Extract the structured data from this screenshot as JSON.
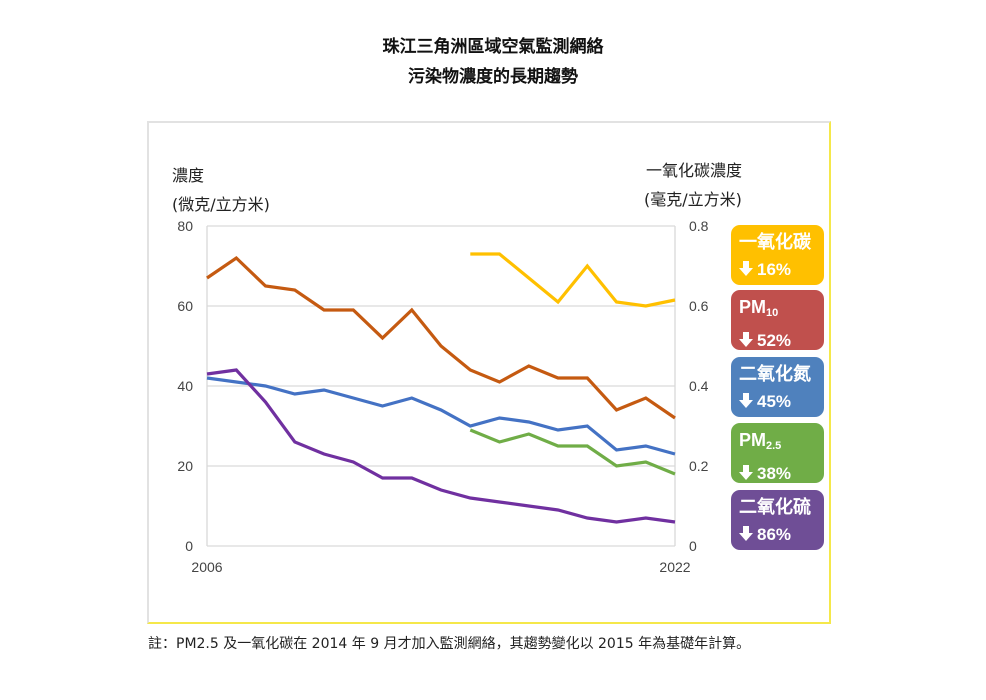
{
  "title_line1": "珠江三角洲區域空氣監測網絡",
  "title_line2": "污染物濃度的長期趨勢",
  "left_axis": {
    "label_line1": "濃度",
    "label_line2": "(微克/立方米)"
  },
  "right_axis": {
    "label_line1": "一氧化碳濃度",
    "label_line2": "(毫克/立方米)"
  },
  "badges": [
    {
      "name": "一氧化碳",
      "sub": "",
      "change": "16%",
      "arrow_icon": "down-arrow",
      "color": "#FFC000"
    },
    {
      "name": "PM",
      "sub": "10",
      "change": "52%",
      "arrow_icon": "down-arrow",
      "color": "#C0504D"
    },
    {
      "name": "二氧化氮",
      "sub": "",
      "change": "45%",
      "arrow_icon": "down-arrow",
      "color": "#4F81BD"
    },
    {
      "name": "PM",
      "sub": "2.5",
      "change": "38%",
      "arrow_icon": "down-arrow",
      "color": "#70AD47"
    },
    {
      "name": "二氧化硫",
      "sub": "",
      "change": "86%",
      "arrow_icon": "down-arrow",
      "color": "#6F4E96"
    }
  ],
  "note": "註：PM2.5 及一氧化碳在 2014 年 9 月才加入監測網絡，其趨勢變化以 2015 年為基礎年計算。",
  "chart_data": {
    "type": "line",
    "title": "珠江三角洲區域空氣監測網絡 污染物濃度的長期趨勢",
    "xlabel": "",
    "ylabel": "濃度 (微克/立方米)",
    "y2label": "一氧化碳濃度 (毫克/立方米)",
    "x": [
      2006,
      2007,
      2008,
      2009,
      2010,
      2011,
      2012,
      2013,
      2014,
      2015,
      2016,
      2017,
      2018,
      2019,
      2020,
      2021,
      2022
    ],
    "x_tick_labels": [
      "2006",
      "2022"
    ],
    "ylim": [
      0,
      80
    ],
    "yticks": [
      0,
      20,
      40,
      60,
      80
    ],
    "y2lim": [
      0,
      0.8
    ],
    "y2ticks": [
      "0",
      "0.2",
      "0.4",
      "0.6",
      "0.8"
    ],
    "grid": true,
    "series": [
      {
        "name": "PM10",
        "axis": "left",
        "color": "#C55A11",
        "values": [
          67,
          72,
          65,
          64,
          59,
          59,
          52,
          59,
          50,
          44,
          41,
          45,
          42,
          42,
          34,
          37,
          32
        ]
      },
      {
        "name": "二氧化氮",
        "axis": "left",
        "color": "#4472C4",
        "values": [
          42,
          41,
          40,
          38,
          39,
          37,
          35,
          37,
          34,
          30,
          32,
          31,
          29,
          30,
          24,
          25,
          23
        ]
      },
      {
        "name": "二氧化硫",
        "axis": "left",
        "color": "#7030A0",
        "values": [
          43,
          44,
          36,
          26,
          23,
          21,
          17,
          17,
          14,
          12,
          11,
          10,
          9,
          7,
          6,
          7,
          6
        ]
      },
      {
        "name": "PM2.5",
        "axis": "left",
        "color": "#70AD47",
        "values": [
          null,
          null,
          null,
          null,
          null,
          null,
          null,
          null,
          null,
          29,
          26,
          28,
          25,
          25,
          20,
          21,
          18
        ]
      },
      {
        "name": "一氧化碳",
        "axis": "right",
        "color": "#FFC000",
        "values": [
          null,
          null,
          null,
          null,
          null,
          null,
          null,
          null,
          null,
          0.73,
          0.73,
          0.67,
          0.61,
          0.7,
          0.61,
          0.6,
          0.615
        ]
      }
    ]
  }
}
